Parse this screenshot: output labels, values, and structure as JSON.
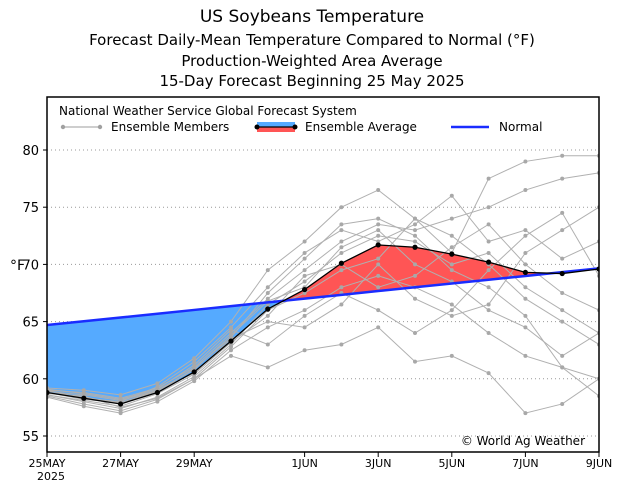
{
  "chart_data": {
    "type": "line",
    "title": "US Soybeans Temperature",
    "subtitles": [
      "Forecast Daily-Mean Temperature Compared to Normal (°F)",
      "Production-Weighted Area Average",
      "15-Day Forecast Beginning 25 May 2025"
    ],
    "ylabel": "°F",
    "ylim": [
      53.5,
      84.5
    ],
    "yticks": [
      55,
      60,
      65,
      70,
      75,
      80
    ],
    "xlim": [
      0,
      15
    ],
    "xticks": [
      {
        "day": 0,
        "label": "25MAY",
        "sub": "2025"
      },
      {
        "day": 2,
        "label": "27MAY"
      },
      {
        "day": 4,
        "label": "29MAY"
      },
      {
        "day": 7,
        "label": "1JUN"
      },
      {
        "day": 9,
        "label": "3JUN"
      },
      {
        "day": 11,
        "label": "5JUN"
      },
      {
        "day": 13,
        "label": "7JUN"
      },
      {
        "day": 15,
        "label": "9JUN"
      }
    ],
    "grid": "horizontal dotted",
    "legend": {
      "source": "National Weather Service Global Forecast System",
      "members": "Ensemble Members",
      "average": "Ensemble Average",
      "normal": "Normal"
    },
    "credit": "© World Ag Weather",
    "colors": {
      "members": "#b0b0b0",
      "average": "#000000",
      "normal": "#1a2cff",
      "below": "#55aaff",
      "above": "#ff5555"
    },
    "normal": [
      64.7,
      65.03,
      65.36,
      65.69,
      66.02,
      66.35,
      66.68,
      67.01,
      67.34,
      67.67,
      68.0,
      68.33,
      68.66,
      68.99,
      69.32,
      69.65
    ],
    "average": [
      58.8,
      58.3,
      57.8,
      58.8,
      60.6,
      63.3,
      66.1,
      67.8,
      70.1,
      71.7,
      71.5,
      70.9,
      70.2,
      69.3,
      69.2,
      69.6
    ],
    "members": [
      [
        58.6,
        58.0,
        57.4,
        58.4,
        60.2,
        63.0,
        66.5,
        68.5,
        71.0,
        72.5,
        72.0,
        70.0,
        71.0,
        68.0,
        66.0,
        64.0
      ],
      [
        59.0,
        58.8,
        58.3,
        59.2,
        61.0,
        64.0,
        67.0,
        69.5,
        72.0,
        73.5,
        73.0,
        74.0,
        75.0,
        76.5,
        77.5,
        78.0
      ],
      [
        58.4,
        57.6,
        57.0,
        58.0,
        59.8,
        62.5,
        64.5,
        66.0,
        68.0,
        69.0,
        68.0,
        66.5,
        64.0,
        62.0,
        61.0,
        60.0
      ],
      [
        59.2,
        59.0,
        58.6,
        59.6,
        61.8,
        65.0,
        69.5,
        72.0,
        75.0,
        76.5,
        74.0,
        72.5,
        70.0,
        67.0,
        65.0,
        63.0
      ],
      [
        58.8,
        58.2,
        57.9,
        59.0,
        60.5,
        63.5,
        65.0,
        64.5,
        66.5,
        70.0,
        67.0,
        65.5,
        66.5,
        71.0,
        73.0,
        75.0
      ],
      [
        58.7,
        58.5,
        57.5,
        58.3,
        60.0,
        62.0,
        61.0,
        62.5,
        63.0,
        64.5,
        61.5,
        62.0,
        60.5,
        57.0,
        57.8,
        60.0
      ],
      [
        59.0,
        58.3,
        58.0,
        59.3,
        61.5,
        64.5,
        68.0,
        71.0,
        73.0,
        72.0,
        73.5,
        76.0,
        72.0,
        73.0,
        70.5,
        72.0
      ],
      [
        58.5,
        57.8,
        57.2,
        58.2,
        60.0,
        62.8,
        66.0,
        67.5,
        69.5,
        70.5,
        74.0,
        71.0,
        77.5,
        79.0,
        79.5,
        79.5
      ],
      [
        58.9,
        58.6,
        58.1,
        59.0,
        60.8,
        63.8,
        66.8,
        68.0,
        71.5,
        73.0,
        70.0,
        68.5,
        66.0,
        64.5,
        62.0,
        64.0
      ],
      [
        58.6,
        58.1,
        57.6,
        58.7,
        60.4,
        63.2,
        65.5,
        69.0,
        70.0,
        68.0,
        69.0,
        71.5,
        73.5,
        70.0,
        67.5,
        66.0
      ],
      [
        58.8,
        58.4,
        57.9,
        58.9,
        60.9,
        63.6,
        67.5,
        70.5,
        73.5,
        74.0,
        72.5,
        69.5,
        68.0,
        65.5,
        61.0,
        58.5
      ],
      [
        59.1,
        58.7,
        58.2,
        59.1,
        61.2,
        64.3,
        63.0,
        65.5,
        67.5,
        66.0,
        64.0,
        66.0,
        69.5,
        72.5,
        74.5,
        69.0
      ]
    ]
  }
}
